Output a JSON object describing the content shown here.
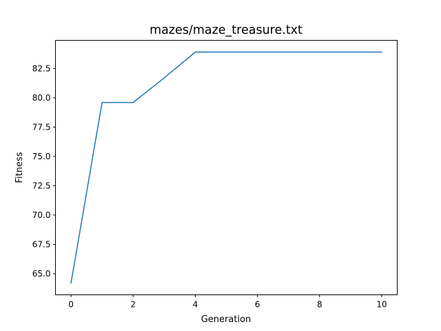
{
  "chart_data": {
    "type": "line",
    "title": "mazes/maze_treasure.txt",
    "xlabel": "Generation",
    "ylabel": "Fitness",
    "xlim": [
      -0.5,
      10.5
    ],
    "ylim": [
      63.2,
      84.9
    ],
    "x_ticks": [
      0,
      2,
      4,
      6,
      8,
      10
    ],
    "y_ticks": [
      65.0,
      67.5,
      70.0,
      72.5,
      75.0,
      77.5,
      80.0,
      82.5
    ],
    "x_tick_labels": [
      "0",
      "2",
      "4",
      "6",
      "8",
      "10"
    ],
    "y_tick_labels": [
      "65.0",
      "67.5",
      "70.0",
      "72.5",
      "75.0",
      "77.5",
      "80.0",
      "82.5"
    ],
    "grid": false,
    "series": [
      {
        "color": "#1f77b4",
        "x": [
          0,
          1,
          2,
          3,
          4,
          5,
          6,
          7,
          8,
          9,
          10
        ],
        "values": [
          64.2,
          79.6,
          79.6,
          81.7,
          83.9,
          83.9,
          83.9,
          83.9,
          83.9,
          83.9,
          83.9
        ]
      }
    ]
  }
}
